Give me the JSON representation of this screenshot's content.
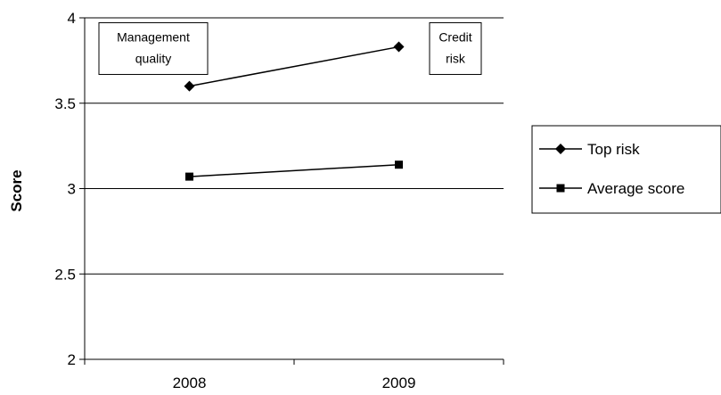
{
  "chart_data": {
    "type": "line",
    "categories": [
      "2008",
      "2009"
    ],
    "ylabel": "Score",
    "ylim": [
      2,
      4
    ],
    "yticks": [
      "2",
      "2.5",
      "3",
      "3.5",
      "4"
    ],
    "grid": "horizontal",
    "legend_position": "right",
    "series": [
      {
        "name": "Top risk",
        "marker": "diamond",
        "values": [
          3.6,
          3.83
        ]
      },
      {
        "name": "Average score",
        "marker": "square",
        "values": [
          3.07,
          3.14
        ]
      }
    ],
    "annotations": [
      {
        "lines": [
          "Management",
          "quality"
        ],
        "category": "2008",
        "value": 3.82
      },
      {
        "lines": [
          "Credit",
          "risk"
        ],
        "category": "2009",
        "value": 3.82
      }
    ],
    "colors": {
      "line": "#000000",
      "grid": "#000000",
      "background": "#ffffff"
    }
  }
}
